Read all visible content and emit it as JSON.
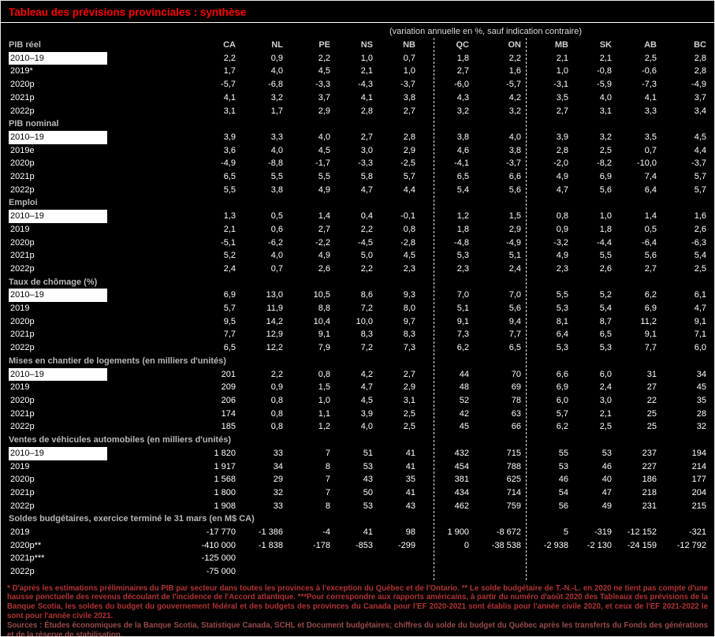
{
  "title": "Tableau des prévisions provinciales : synthèse",
  "subtitle": "(variation annuelle en %, sauf indication contraire)",
  "columns": [
    "CA",
    "NL",
    "PE",
    "NS",
    "NB",
    "QC",
    "ON",
    "MB",
    "SK",
    "AB",
    "BC"
  ],
  "sections": [
    {
      "label": "PIB réel",
      "rows": [
        {
          "label": "2010–19",
          "highlight": true,
          "values": [
            "2,2",
            "0,9",
            "2,2",
            "1,0",
            "0,7",
            "1,8",
            "2,2",
            "2,1",
            "2,1",
            "2,5",
            "2,8"
          ]
        },
        {
          "label": "2019*",
          "highlight": false,
          "values": [
            "1,7",
            "4,0",
            "4,5",
            "2,1",
            "1,0",
            "2,7",
            "1,6",
            "1,0",
            "-0,8",
            "-0,6",
            "2,8"
          ]
        },
        {
          "label": "2020p",
          "highlight": false,
          "values": [
            "-5,7",
            "-6,8",
            "-3,3",
            "-4,3",
            "-3,7",
            "-6,0",
            "-5,7",
            "-3,1",
            "-5,9",
            "-7,3",
            "-4,9"
          ]
        },
        {
          "label": "2021p",
          "highlight": false,
          "values": [
            "4,1",
            "3,2",
            "3,7",
            "4,1",
            "3,8",
            "4,3",
            "4,2",
            "3,5",
            "4,0",
            "4,1",
            "3,7"
          ]
        },
        {
          "label": "2022p",
          "highlight": false,
          "values": [
            "3,1",
            "1,7",
            "2,9",
            "2,8",
            "2,7",
            "3,2",
            "3,2",
            "2,7",
            "3,1",
            "3,3",
            "3,4"
          ]
        }
      ]
    },
    {
      "label": "PIB nominal",
      "rows": [
        {
          "label": "2010–19",
          "highlight": true,
          "values": [
            "3,9",
            "3,3",
            "4,0",
            "2,7",
            "2,8",
            "3,8",
            "4,0",
            "3,9",
            "3,2",
            "3,5",
            "4,5"
          ]
        },
        {
          "label": "2019e",
          "highlight": false,
          "values": [
            "3,6",
            "4,0",
            "4,5",
            "3,0",
            "2,9",
            "4,6",
            "3,8",
            "2,8",
            "2,5",
            "0,7",
            "4,4"
          ]
        },
        {
          "label": "2020p",
          "highlight": false,
          "values": [
            "-4,9",
            "-8,8",
            "-1,7",
            "-3,3",
            "-2,5",
            "-4,1",
            "-3,7",
            "-2,0",
            "-8,2",
            "-10,0",
            "-3,7"
          ]
        },
        {
          "label": "2021p",
          "highlight": false,
          "values": [
            "6,5",
            "5,5",
            "5,5",
            "5,8",
            "5,7",
            "6,5",
            "6,6",
            "4,9",
            "6,9",
            "7,4",
            "5,7"
          ]
        },
        {
          "label": "2022p",
          "highlight": false,
          "values": [
            "5,5",
            "3,8",
            "4,9",
            "4,7",
            "4,4",
            "5,4",
            "5,6",
            "4,7",
            "5,6",
            "6,4",
            "5,7"
          ]
        }
      ]
    },
    {
      "label": "Emploi",
      "rows": [
        {
          "label": "2010–19",
          "highlight": true,
          "values": [
            "1,3",
            "0,5",
            "1,4",
            "0,4",
            "-0,1",
            "1,2",
            "1,5",
            "0,8",
            "1,0",
            "1,4",
            "1,6"
          ]
        },
        {
          "label": "2019",
          "highlight": false,
          "values": [
            "2,1",
            "0,6",
            "2,7",
            "2,2",
            "0,8",
            "1,8",
            "2,9",
            "0,9",
            "1,8",
            "0,5",
            "2,6"
          ]
        },
        {
          "label": "2020p",
          "highlight": false,
          "values": [
            "-5,1",
            "-6,2",
            "-2,2",
            "-4,5",
            "-2,8",
            "-4,8",
            "-4,9",
            "-3,2",
            "-4,4",
            "-6,4",
            "-6,3"
          ]
        },
        {
          "label": "2021p",
          "highlight": false,
          "values": [
            "5,2",
            "4,0",
            "4,9",
            "5,0",
            "4,5",
            "5,3",
            "5,1",
            "4,9",
            "5,5",
            "5,6",
            "5,4"
          ]
        },
        {
          "label": "2022p",
          "highlight": false,
          "values": [
            "2,4",
            "0,7",
            "2,6",
            "2,2",
            "2,3",
            "2,3",
            "2,4",
            "2,3",
            "2,6",
            "2,7",
            "2,5"
          ]
        }
      ]
    },
    {
      "label": "Taux de chômage (%)",
      "rows": [
        {
          "label": "2010–19",
          "highlight": true,
          "values": [
            "6,9",
            "13,0",
            "10,5",
            "8,6",
            "9,3",
            "7,0",
            "7,0",
            "5,5",
            "5,2",
            "6,2",
            "6,1"
          ]
        },
        {
          "label": "2019",
          "highlight": false,
          "values": [
            "5,7",
            "11,9",
            "8,8",
            "7,2",
            "8,0",
            "5,1",
            "5,6",
            "5,3",
            "5,4",
            "6,9",
            "4,7"
          ]
        },
        {
          "label": "2020p",
          "highlight": false,
          "values": [
            "9,5",
            "14,2",
            "10,4",
            "10,0",
            "9,7",
            "9,1",
            "9,4",
            "8,1",
            "8,7",
            "11,2",
            "9,1"
          ]
        },
        {
          "label": "2021p",
          "highlight": false,
          "values": [
            "7,7",
            "12,9",
            "9,1",
            "8,3",
            "8,3",
            "7,3",
            "7,7",
            "6,4",
            "6,5",
            "9,1",
            "7,1"
          ]
        },
        {
          "label": "2022p",
          "highlight": false,
          "values": [
            "6,5",
            "12,2",
            "7,9",
            "7,2",
            "7,3",
            "6,2",
            "6,5",
            "5,3",
            "5,3",
            "7,7",
            "6,0"
          ]
        }
      ]
    },
    {
      "label": "Mises en chantier de logements (en milliers d'unités)",
      "rows": [
        {
          "label": "2010–19",
          "highlight": true,
          "values": [
            "201",
            "2,2",
            "0,8",
            "4,2",
            "2,7",
            "44",
            "70",
            "6,6",
            "6,0",
            "31",
            "34"
          ]
        },
        {
          "label": "2019",
          "highlight": false,
          "values": [
            "209",
            "0,9",
            "1,5",
            "4,7",
            "2,9",
            "48",
            "69",
            "6,9",
            "2,4",
            "27",
            "45"
          ]
        },
        {
          "label": "2020p",
          "highlight": false,
          "values": [
            "206",
            "0,8",
            "1,0",
            "4,5",
            "3,1",
            "52",
            "78",
            "6,0",
            "3,0",
            "22",
            "35"
          ]
        },
        {
          "label": "2021p",
          "highlight": false,
          "values": [
            "174",
            "0,8",
            "1,1",
            "3,9",
            "2,5",
            "42",
            "63",
            "5,7",
            "2,1",
            "25",
            "28"
          ]
        },
        {
          "label": "2022p",
          "highlight": false,
          "values": [
            "185",
            "0,8",
            "1,2",
            "4,0",
            "2,5",
            "45",
            "66",
            "6,2",
            "2,5",
            "25",
            "32"
          ]
        }
      ]
    },
    {
      "label": "Ventes de véhicules automobiles (en milliers d'unités)",
      "rows": [
        {
          "label": "2010–19",
          "highlight": true,
          "values": [
            "1 820",
            "33",
            "7",
            "51",
            "41",
            "432",
            "715",
            "55",
            "53",
            "237",
            "194"
          ]
        },
        {
          "label": "2019",
          "highlight": false,
          "values": [
            "1 917",
            "34",
            "8",
            "53",
            "41",
            "454",
            "788",
            "53",
            "46",
            "227",
            "214"
          ]
        },
        {
          "label": "2020p",
          "highlight": false,
          "values": [
            "1 568",
            "29",
            "7",
            "43",
            "35",
            "381",
            "625",
            "46",
            "40",
            "186",
            "177"
          ]
        },
        {
          "label": "2021p",
          "highlight": false,
          "values": [
            "1 800",
            "32",
            "7",
            "50",
            "41",
            "434",
            "714",
            "54",
            "47",
            "218",
            "204"
          ]
        },
        {
          "label": "2022p",
          "highlight": false,
          "values": [
            "1 908",
            "33",
            "8",
            "53",
            "43",
            "462",
            "759",
            "56",
            "49",
            "231",
            "215"
          ]
        }
      ]
    },
    {
      "label": "Soldes budgétaires, exercice terminé le 31 mars (en M$ CA)",
      "rows": [
        {
          "label": "2019",
          "highlight": false,
          "values": [
            "-17 770",
            "-1 386",
            "-4",
            "41",
            "98",
            "1 900",
            "-8 672",
            "5",
            "-319",
            "-12 152",
            "-321"
          ]
        },
        {
          "label": "2020p**",
          "highlight": false,
          "values": [
            "-410 000",
            "-1 838",
            "-178",
            "-853",
            "-299",
            "0",
            "-38 538",
            "-2 938",
            "-2 130",
            "-24 159",
            "-12 792"
          ]
        },
        {
          "label": "2021p***",
          "highlight": false,
          "values": [
            "-125 000",
            "",
            "",
            "",
            "",
            "",
            "",
            "",
            "",
            "",
            ""
          ]
        },
        {
          "label": "2022p",
          "highlight": false,
          "values": [
            "-75 000",
            "",
            "",
            "",
            "",
            "",
            "",
            "",
            "",
            "",
            ""
          ]
        }
      ]
    }
  ],
  "footnote": "* D'après les estimations préliminaires du PIB par secteur dans toutes les provinces à l'exception du Québec et de l'Ontario. ** Le solde budgétaire de T.-N.-L. en 2020 ne tient pas compte d'une hausse ponctuelle des revenus découlant de l'incidence de l'Accord atlantique. ***Pour correspondre aux rapports américains, à partir du numéro d'août 2020 des Tableaux des prévisions de la Banque Scotia, les soldes du budget du gouvernement fédéral et des budgets des provinces du Canada pour l'EF 2020-2021 sont établis pour l'année civile 2020, et ceux de l'EF 2021-2022 le sont pour l'année civile 2021.",
  "sources": "Sources : Études économiques de la Banque Scotia, Statistique Canada, SCHL et Document budgétaires; chiffres du solde du budget du Québec après les transferts du Fonds des générations et de la réserve de stabilisation."
}
